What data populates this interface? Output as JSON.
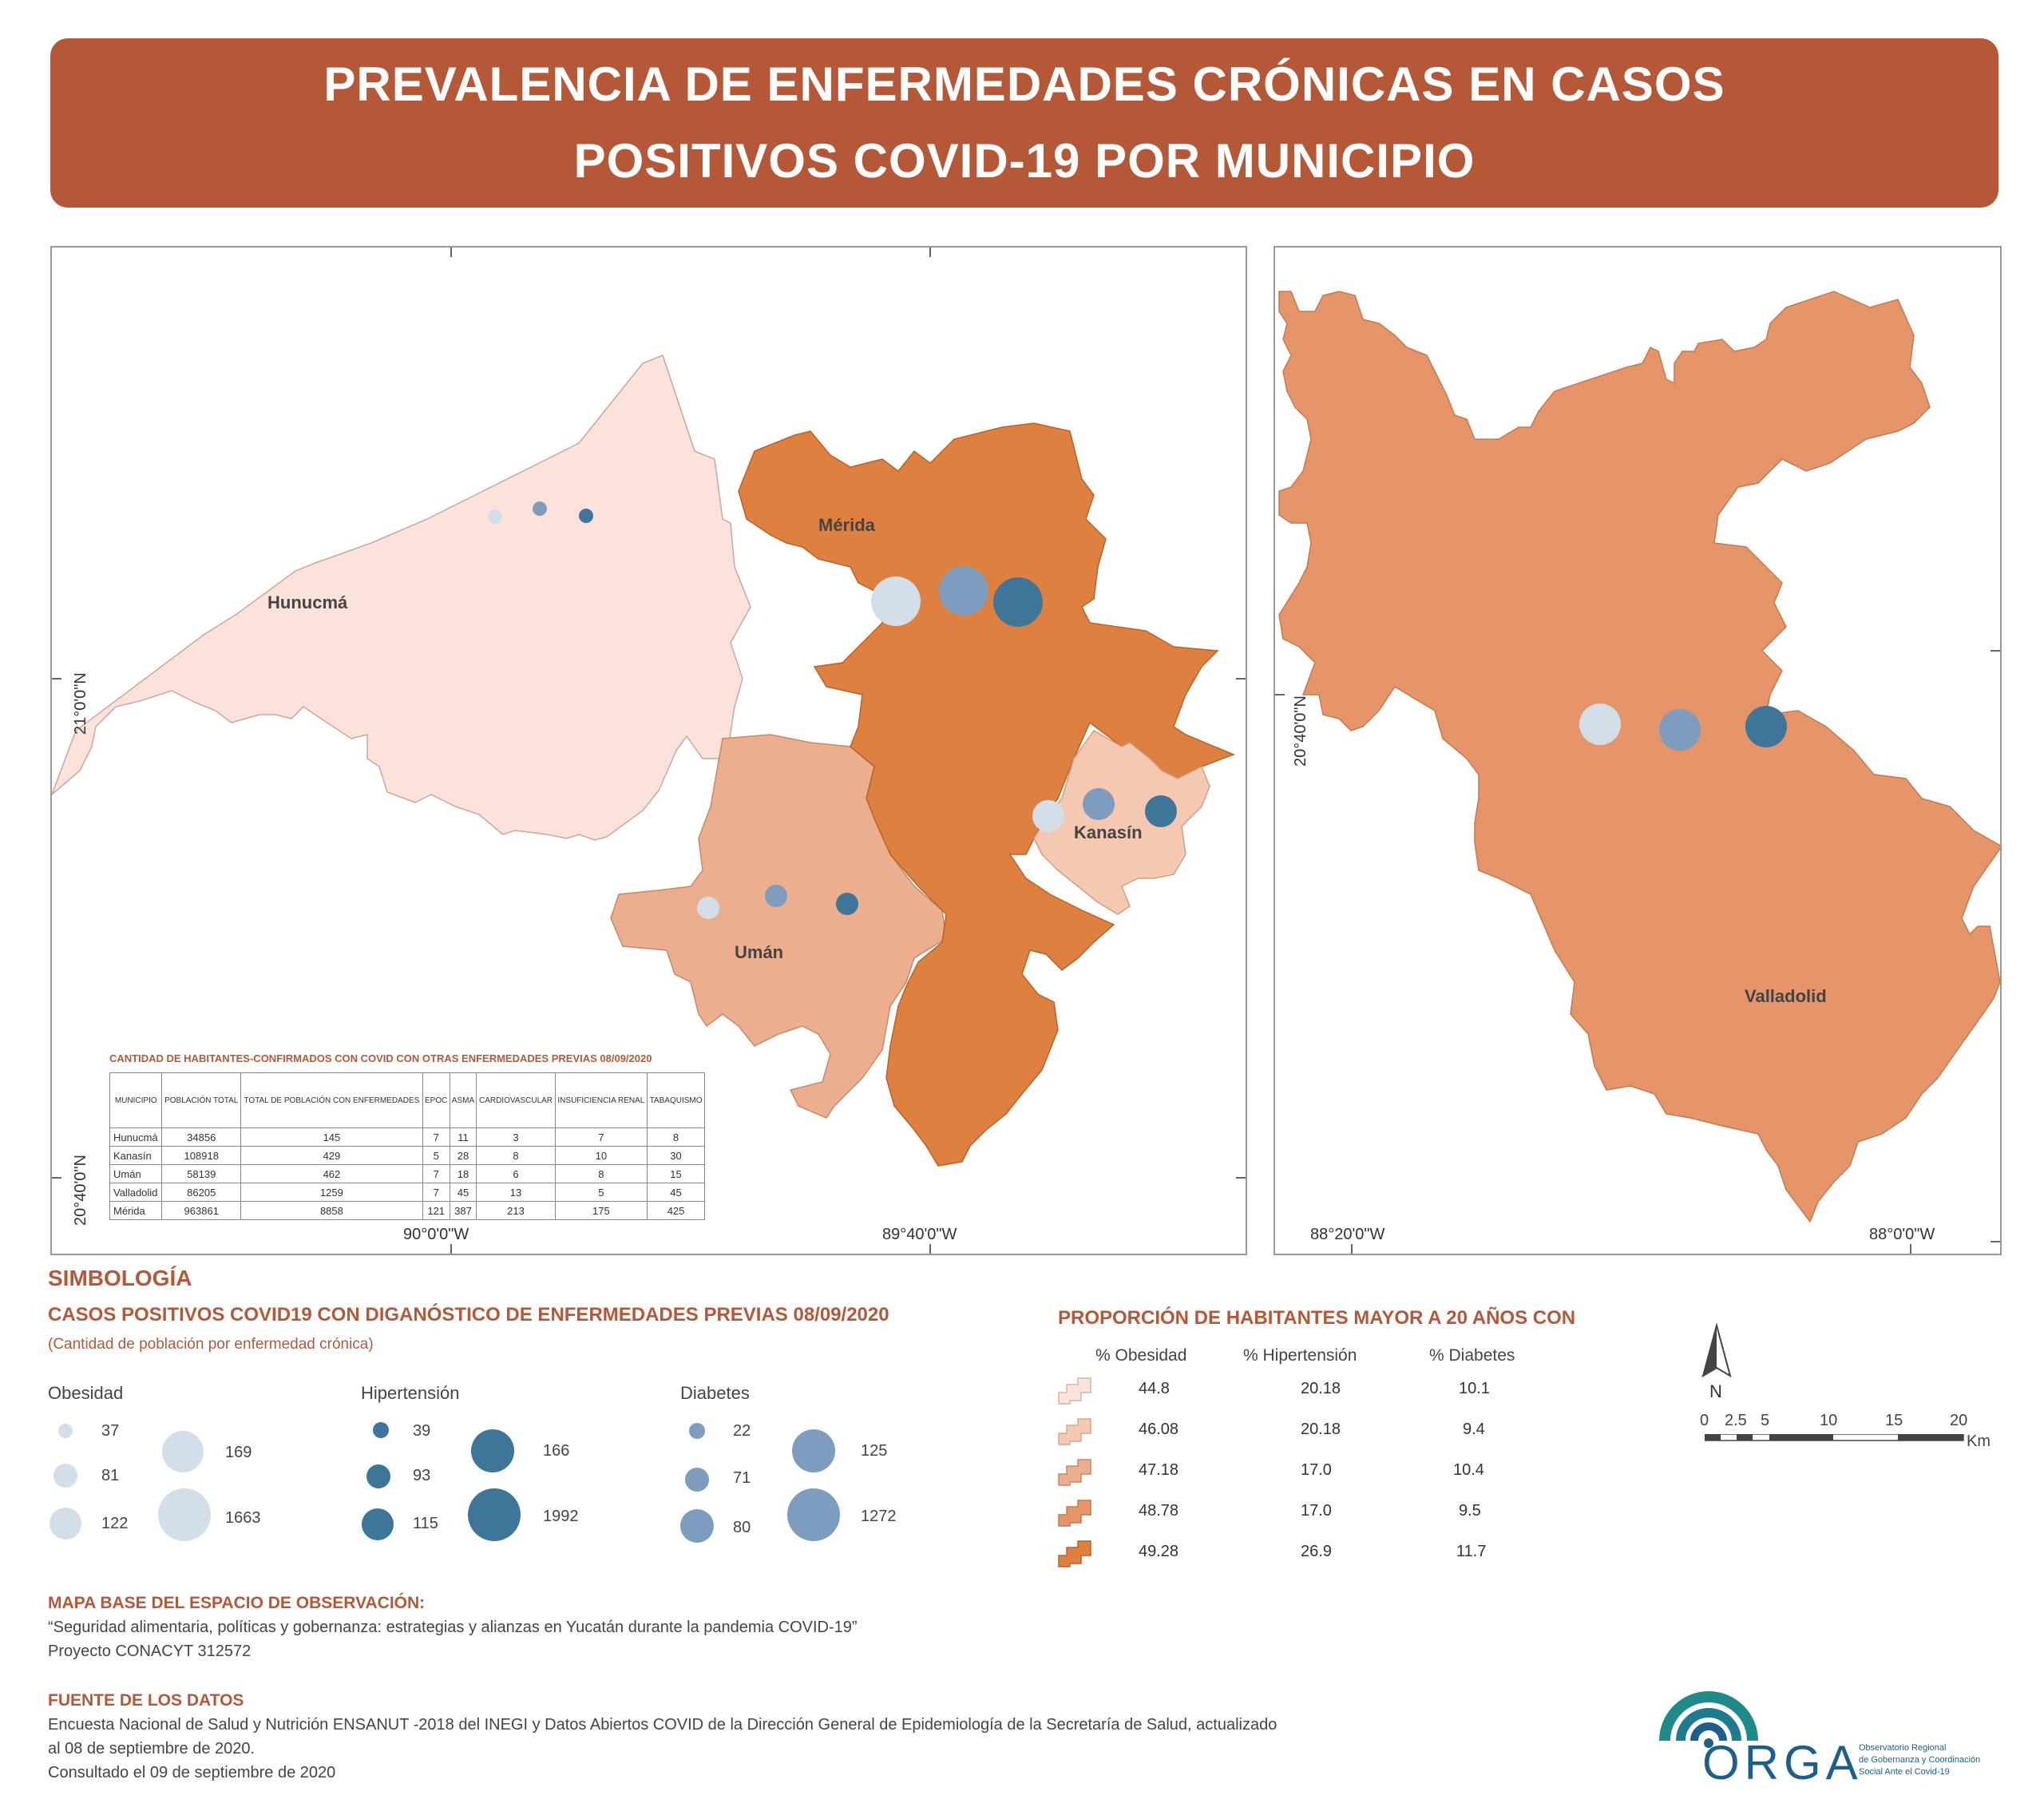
{
  "title": {
    "line1": "PREVALENCIA DE ENFERMEDADES CRÓNICAS EN CASOS",
    "line2": "POSITIVOS COVID-19 POR MUNICIPIO"
  },
  "map_left": {
    "labels": {
      "hunucma": "Hunucmá",
      "merida": "Mérida",
      "kanasin": "Kanasín",
      "uman": "Umán"
    },
    "coords": {
      "lon_a": "90°0'0\"W",
      "lon_b": "89°40'0\"W",
      "lat_a": "21°0'0\"N",
      "lat_b": "20°40'0\"N"
    }
  },
  "map_right": {
    "labels": {
      "valladolid": "Valladolid"
    },
    "coords": {
      "lon_a": "88°20'0\"W",
      "lon_b": "88°0'0\"W",
      "lat_a": "20°40'0\"N"
    }
  },
  "colors": {
    "accent": "#b55838",
    "obesidad": "#d3dfe8",
    "hipertension": "#3e7598",
    "diabetes": "#7e9cbe",
    "class1": "#fbe3dc",
    "class2": "#f5c8b2",
    "class3": "#ebae8f",
    "class4": "#e6956a",
    "class5": "#de803f"
  },
  "table": {
    "title": "CANTIDAD DE HABITANTES-CONFIRMADOS CON COVID CON OTRAS ENFERMEDADES PREVIAS 08/09/2020",
    "headers": [
      "MUNICIPIO",
      "POBLACIÓN TOTAL",
      "TOTAL DE POBLACIÓN CON ENFERMEDADES",
      "EPOC",
      "ASMA",
      "CARDIOVASCULAR",
      "INSUFICIENCIA RENAL",
      "TABAQUISMO"
    ],
    "rows": [
      [
        "Hunucmá",
        "34856",
        "145",
        "7",
        "11",
        "3",
        "7",
        "8"
      ],
      [
        "Kanasín",
        "108918",
        "429",
        "5",
        "28",
        "8",
        "10",
        "30"
      ],
      [
        "Umán",
        "58139",
        "462",
        "7",
        "18",
        "6",
        "8",
        "15"
      ],
      [
        "Valladolid",
        "86205",
        "1259",
        "7",
        "45",
        "13",
        "5",
        "45"
      ],
      [
        "Mérida",
        "963861",
        "8858",
        "121",
        "387",
        "213",
        "175",
        "425"
      ]
    ]
  },
  "legend": {
    "simbologia": "SIMBOLOGÍA",
    "casos_title": "CASOS POSITIVOS COVID19 CON DIGANÓSTICO DE ENFERMEDADES PREVIAS 08/09/2020",
    "casos_subtitle": "(Cantidad de población por enfermedad crónica)",
    "groups": [
      {
        "name": "Obesidad",
        "values": [
          "37",
          "81",
          "122",
          "169",
          "1663"
        ]
      },
      {
        "name": "Hipertensión",
        "values": [
          "39",
          "93",
          "115",
          "166",
          "1992"
        ]
      },
      {
        "name": "Diabetes",
        "values": [
          "22",
          "71",
          "80",
          "125",
          "1272"
        ]
      }
    ],
    "proporcion_title": "PROPORCIÓN DE HABITANTES MAYOR A 20 AÑOS CON",
    "proporcion_headers": [
      "% Obesidad",
      "% Hipertensión",
      "% Diabetes"
    ],
    "proporcion_rows": [
      [
        "44.8",
        "20.18",
        "10.1"
      ],
      [
        "46.08",
        "20.18",
        "9.4"
      ],
      [
        "47.18",
        "17.0",
        "10.4"
      ],
      [
        "48.78",
        "17.0",
        "9.5"
      ],
      [
        "49.28",
        "26.9",
        "11.7"
      ]
    ]
  },
  "north": "N",
  "scale": {
    "ticks": [
      "0",
      "2.5",
      "5",
      "10",
      "15",
      "20"
    ],
    "unit": "Km"
  },
  "mapa_base": {
    "title": "MAPA BASE DEL ESPACIO DE OBSERVACIÓN:",
    "line1": "“Seguridad alimentaria, políticas y gobernanza: estrategias y alianzas en Yucatán durante la pandemia COVID-19”",
    "line2": "Proyecto CONACYT 312572"
  },
  "fuente": {
    "title": "FUENTE DE LOS DATOS",
    "line1": "Encuesta Nacional de Salud y Nutrición ENSANUT -2018 del INEGI y Datos Abiertos COVID de la Dirección General de Epidemiología de la Secretaría de Salud, actualizado",
    "line2": "al 08 de septiembre de 2020.",
    "line3": "Consultado el 09 de septiembre de 2020"
  },
  "logo": {
    "name": "ORGA",
    "line1": "Observatorio Regional",
    "line2": "de Gobernanza y Coordinación",
    "line3": "Social Ante el Covid-19"
  }
}
